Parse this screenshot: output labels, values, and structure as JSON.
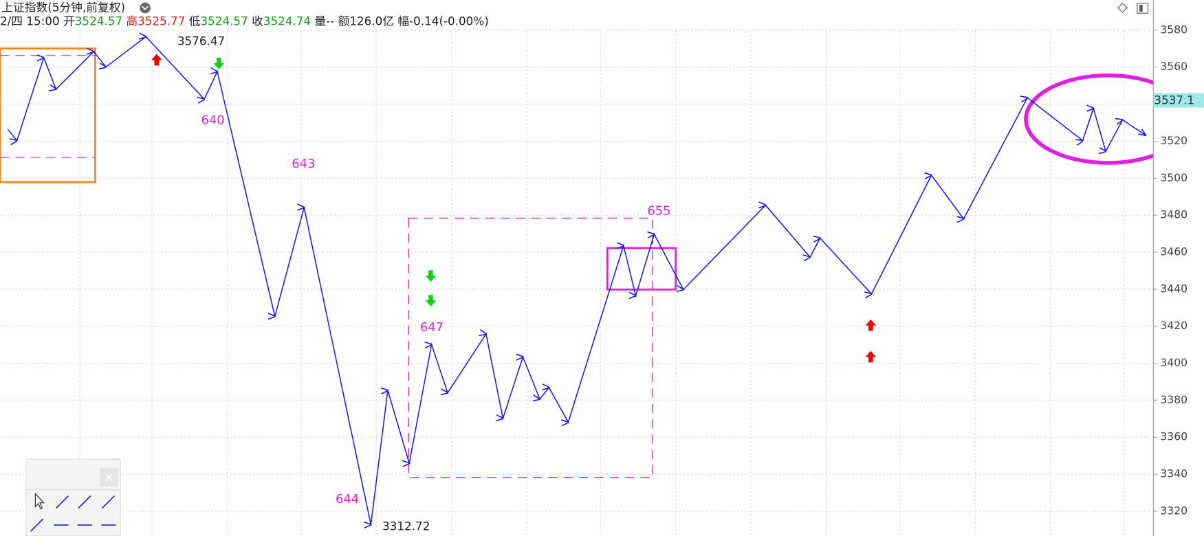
{
  "chart_data": {
    "type": "line",
    "title": "上证指数(5分钟,前复权)",
    "quote": [
      {
        "label": "2/四 15:00"
      },
      {
        "label": "开",
        "value": "3524.57"
      },
      {
        "label": "高",
        "value": "3525.77"
      },
      {
        "label": "低",
        "value": "3524.57"
      },
      {
        "label": "收",
        "value": "3524.74"
      },
      {
        "label": "量--"
      },
      {
        "label": "额126.0亿"
      },
      {
        "label": "幅-0.14(-0.00%)"
      }
    ],
    "annotations": [
      "640",
      "643",
      "644",
      "647",
      "655"
    ],
    "high_label": "3576.47",
    "low_label": "3312.72",
    "price_tag": "3537.1",
    "series": [
      {
        "color": "#1c1cf0",
        "x": [
          10,
          22,
          57,
          73,
          122,
          138,
          190,
          266,
          283,
          358,
          396,
          483,
          505,
          533,
          562,
          583,
          633,
          655,
          681,
          703,
          715,
          740,
          812,
          828,
          852,
          890,
          997,
          1055,
          1068,
          1135,
          1213,
          1255,
          1338,
          1410,
          1424,
          1440,
          1462,
          1492
        ],
        "values": [
          3526.5,
          3520.3,
          3565.1,
          3548.1,
          3568.4,
          3560.1,
          3576.47,
          3542.7,
          3557.6,
          3425.3,
          3484.2,
          3312.72,
          3385.3,
          3345.9,
          3410.1,
          3384.0,
          3415.8,
          3370.2,
          3403.4,
          3380.6,
          3386.8,
          3368.1,
          3463.5,
          3436.5,
          3469.7,
          3439.8,
          3485.4,
          3457.3,
          3467.6,
          3437.4,
          3501.6,
          3478.0,
          3543.5,
          3520.3,
          3537.7,
          3514.5,
          3531.5,
          3523.2
        ]
      }
    ],
    "xlim": [
      0,
      1500
    ],
    "ylim": [
      3306.7,
      3596.2
    ],
    "yticks": [
      3320,
      3340,
      3360,
      3380,
      3400,
      3420,
      3440,
      3460,
      3480,
      3500,
      3520,
      3540,
      3560,
      3580
    ],
    "grid": true
  }
}
